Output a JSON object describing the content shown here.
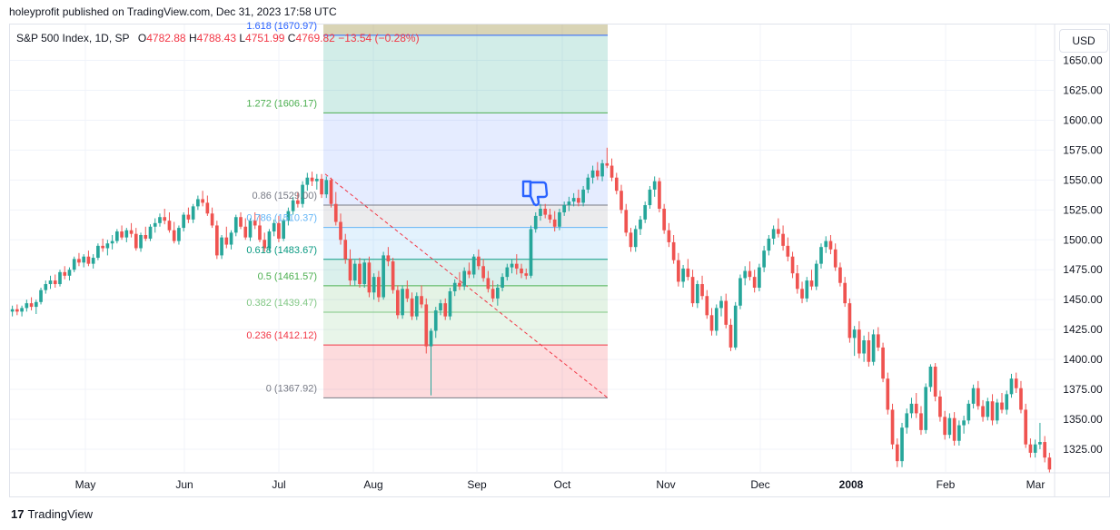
{
  "header": {
    "published": "holeyprofit published on TradingView.com, Dec 31, 2023 17:58 UTC"
  },
  "legend": {
    "symbol": "S&P 500 Index, 1D, SP",
    "o_label": "O",
    "o_value": "4782.88",
    "h_label": "H",
    "h_value": "4788.43",
    "l_label": "L",
    "l_value": "4751.99",
    "c_label": "C",
    "c_value": "4769.82",
    "change": "−13.54 (−0.28%)"
  },
  "currency": "USD",
  "footer": {
    "logo": "17",
    "brand": "TradingView"
  },
  "colors": {
    "up": "#26a69a",
    "down": "#ef5350",
    "grid": "#f0f3fa",
    "thumb": "#2962ff"
  },
  "annotation_icon": "thumbs-down-icon",
  "chart_data": {
    "type": "candlestick",
    "x_tick_labels": [
      "May",
      "Jun",
      "Jul",
      "Aug",
      "Sep",
      "Oct",
      "Nov",
      "Dec",
      "2008",
      "Feb",
      "Mar"
    ],
    "y_tick_labels": [
      "1650.00",
      "1625.00",
      "1600.00",
      "1575.00",
      "1550.00",
      "1525.00",
      "1500.00",
      "1475.00",
      "1450.00",
      "1425.00",
      "1400.00",
      "1375.00",
      "1350.00",
      "1325.00"
    ],
    "ylim": [
      1306,
      1680
    ],
    "grid": true,
    "fibonacci": [
      {
        "ratio": "1.618",
        "price": 1670.97,
        "label": "1.618 (1670.97)",
        "color": "#2962ff"
      },
      {
        "ratio": "1.272",
        "price": 1606.17,
        "label": "1.272 (1606.17)",
        "color": "#4caf50"
      },
      {
        "ratio": "0.86",
        "price": 1529.0,
        "label": "0.86 (1529.00)",
        "color": "#787b86"
      },
      {
        "ratio": "0.786",
        "price": 1510.37,
        "label": "0.786 (1510.37)",
        "color": "#64b5f6"
      },
      {
        "ratio": "0.618",
        "price": 1483.67,
        "label": "0.618 (1483.67)",
        "color": "#089981"
      },
      {
        "ratio": "0.5",
        "price": 1461.57,
        "label": "0.5 (1461.57)",
        "color": "#4caf50"
      },
      {
        "ratio": "0.382",
        "price": 1439.47,
        "label": "0.382 (1439.47)",
        "color": "#81c784"
      },
      {
        "ratio": "0.236",
        "price": 1412.12,
        "label": "0.236 (1412.12)",
        "color": "#f23645"
      },
      {
        "ratio": "0",
        "price": 1367.92,
        "label": "0 (1367.92)",
        "color": "#787b86"
      }
    ],
    "fib_trend_line": {
      "from_price": 1555.0,
      "to_price": 1367.92
    },
    "candles": [
      [
        1440,
        1445,
        1436,
        1442
      ],
      [
        1442,
        1446,
        1437,
        1440
      ],
      [
        1440,
        1445,
        1436,
        1443
      ],
      [
        1443,
        1450,
        1440,
        1447
      ],
      [
        1447,
        1452,
        1441,
        1444
      ],
      [
        1444,
        1450,
        1438,
        1448
      ],
      [
        1448,
        1460,
        1446,
        1458
      ],
      [
        1458,
        1466,
        1455,
        1463
      ],
      [
        1463,
        1470,
        1459,
        1466
      ],
      [
        1466,
        1471,
        1460,
        1463
      ],
      [
        1463,
        1475,
        1461,
        1473
      ],
      [
        1473,
        1478,
        1467,
        1470
      ],
      [
        1470,
        1477,
        1466,
        1475
      ],
      [
        1475,
        1486,
        1473,
        1484
      ],
      [
        1484,
        1489,
        1478,
        1481
      ],
      [
        1481,
        1488,
        1477,
        1486
      ],
      [
        1486,
        1491,
        1478,
        1480
      ],
      [
        1480,
        1488,
        1476,
        1485
      ],
      [
        1485,
        1497,
        1483,
        1495
      ],
      [
        1495,
        1501,
        1490,
        1493
      ],
      [
        1493,
        1500,
        1487,
        1497
      ],
      [
        1497,
        1504,
        1492,
        1499
      ],
      [
        1499,
        1509,
        1497,
        1507
      ],
      [
        1507,
        1512,
        1500,
        1502
      ],
      [
        1502,
        1510,
        1498,
        1508
      ],
      [
        1508,
        1514,
        1502,
        1505
      ],
      [
        1505,
        1510,
        1491,
        1493
      ],
      [
        1493,
        1506,
        1490,
        1504
      ],
      [
        1504,
        1511,
        1499,
        1501
      ],
      [
        1501,
        1513,
        1499,
        1511
      ],
      [
        1511,
        1518,
        1506,
        1514
      ],
      [
        1514,
        1522,
        1511,
        1519
      ],
      [
        1519,
        1526,
        1513,
        1516
      ],
      [
        1516,
        1523,
        1506,
        1508
      ],
      [
        1508,
        1515,
        1497,
        1499
      ],
      [
        1499,
        1512,
        1496,
        1510
      ],
      [
        1510,
        1523,
        1507,
        1521
      ],
      [
        1521,
        1527,
        1514,
        1517
      ],
      [
        1517,
        1530,
        1514,
        1528
      ],
      [
        1528,
        1537,
        1525,
        1534
      ],
      [
        1534,
        1541,
        1528,
        1531
      ],
      [
        1531,
        1537,
        1520,
        1522
      ],
      [
        1522,
        1527,
        1510,
        1512
      ],
      [
        1512,
        1516,
        1484,
        1487
      ],
      [
        1487,
        1504,
        1484,
        1502
      ],
      [
        1502,
        1511,
        1493,
        1496
      ],
      [
        1496,
        1508,
        1492,
        1506
      ],
      [
        1506,
        1521,
        1503,
        1519
      ],
      [
        1519,
        1523,
        1509,
        1511
      ],
      [
        1511,
        1518,
        1500,
        1502
      ],
      [
        1502,
        1518,
        1499,
        1516
      ],
      [
        1516,
        1523,
        1509,
        1512
      ],
      [
        1512,
        1521,
        1498,
        1500
      ],
      [
        1500,
        1506,
        1490,
        1493
      ],
      [
        1493,
        1509,
        1490,
        1507
      ],
      [
        1507,
        1517,
        1503,
        1514
      ],
      [
        1514,
        1520,
        1498,
        1501
      ],
      [
        1501,
        1518,
        1499,
        1516
      ],
      [
        1516,
        1527,
        1512,
        1524
      ],
      [
        1524,
        1536,
        1521,
        1533
      ],
      [
        1533,
        1540,
        1527,
        1530
      ],
      [
        1530,
        1549,
        1527,
        1546
      ],
      [
        1546,
        1556,
        1541,
        1552
      ],
      [
        1552,
        1557,
        1545,
        1549
      ],
      [
        1549,
        1555,
        1542,
        1551
      ],
      [
        1551,
        1555,
        1535,
        1538
      ],
      [
        1538,
        1553,
        1535,
        1550
      ],
      [
        1550,
        1552,
        1527,
        1530
      ],
      [
        1530,
        1540,
        1512,
        1515
      ],
      [
        1515,
        1522,
        1496,
        1500
      ],
      [
        1500,
        1505,
        1480,
        1484
      ],
      [
        1484,
        1492,
        1462,
        1466
      ],
      [
        1466,
        1483,
        1462,
        1480
      ],
      [
        1480,
        1485,
        1460,
        1463
      ],
      [
        1463,
        1484,
        1460,
        1481
      ],
      [
        1481,
        1486,
        1452,
        1456
      ],
      [
        1456,
        1472,
        1450,
        1469
      ],
      [
        1469,
        1474,
        1448,
        1452
      ],
      [
        1452,
        1490,
        1450,
        1487
      ],
      [
        1487,
        1494,
        1478,
        1482
      ],
      [
        1482,
        1485,
        1455,
        1458
      ],
      [
        1458,
        1462,
        1434,
        1437
      ],
      [
        1437,
        1462,
        1434,
        1459
      ],
      [
        1459,
        1466,
        1448,
        1451
      ],
      [
        1451,
        1456,
        1433,
        1436
      ],
      [
        1436,
        1456,
        1433,
        1453
      ],
      [
        1453,
        1462,
        1443,
        1446
      ],
      [
        1446,
        1451,
        1405,
        1411
      ],
      [
        1411,
        1426,
        1370,
        1424
      ],
      [
        1424,
        1444,
        1418,
        1441
      ],
      [
        1441,
        1450,
        1437,
        1447
      ],
      [
        1447,
        1451,
        1433,
        1436
      ],
      [
        1436,
        1460,
        1433,
        1457
      ],
      [
        1457,
        1467,
        1453,
        1464
      ],
      [
        1464,
        1473,
        1458,
        1461
      ],
      [
        1461,
        1477,
        1458,
        1474
      ],
      [
        1474,
        1481,
        1468,
        1471
      ],
      [
        1471,
        1488,
        1468,
        1486
      ],
      [
        1486,
        1492,
        1475,
        1478
      ],
      [
        1478,
        1484,
        1465,
        1468
      ],
      [
        1468,
        1474,
        1456,
        1459
      ],
      [
        1459,
        1466,
        1448,
        1451
      ],
      [
        1451,
        1463,
        1445,
        1460
      ],
      [
        1460,
        1472,
        1457,
        1469
      ],
      [
        1469,
        1480,
        1466,
        1477
      ],
      [
        1477,
        1484,
        1472,
        1480
      ],
      [
        1480,
        1488,
        1471,
        1476
      ],
      [
        1476,
        1480,
        1468,
        1472
      ],
      [
        1472,
        1476,
        1467,
        1470
      ],
      [
        1470,
        1512,
        1468,
        1509
      ],
      [
        1509,
        1523,
        1506,
        1520
      ],
      [
        1520,
        1530,
        1516,
        1526
      ],
      [
        1526,
        1530,
        1518,
        1521
      ],
      [
        1521,
        1526,
        1514,
        1517
      ],
      [
        1517,
        1524,
        1507,
        1511
      ],
      [
        1511,
        1526,
        1508,
        1523
      ],
      [
        1523,
        1532,
        1520,
        1529
      ],
      [
        1529,
        1536,
        1524,
        1532
      ],
      [
        1532,
        1539,
        1528,
        1535
      ],
      [
        1535,
        1542,
        1528,
        1531
      ],
      [
        1531,
        1545,
        1528,
        1542
      ],
      [
        1542,
        1555,
        1539,
        1552
      ],
      [
        1552,
        1562,
        1547,
        1558
      ],
      [
        1558,
        1565,
        1550,
        1553
      ],
      [
        1553,
        1567,
        1549,
        1564
      ],
      [
        1564,
        1577,
        1560,
        1562
      ],
      [
        1562,
        1568,
        1549,
        1552
      ],
      [
        1552,
        1556,
        1538,
        1541
      ],
      [
        1541,
        1546,
        1522,
        1525
      ],
      [
        1525,
        1530,
        1503,
        1506
      ],
      [
        1506,
        1510,
        1490,
        1494
      ],
      [
        1494,
        1512,
        1490,
        1509
      ],
      [
        1509,
        1520,
        1504,
        1517
      ],
      [
        1517,
        1532,
        1514,
        1529
      ],
      [
        1529,
        1545,
        1526,
        1542
      ],
      [
        1542,
        1553,
        1536,
        1549
      ],
      [
        1549,
        1552,
        1523,
        1526
      ],
      [
        1526,
        1530,
        1505,
        1508
      ],
      [
        1508,
        1514,
        1494,
        1498
      ],
      [
        1498,
        1504,
        1480,
        1483
      ],
      [
        1483,
        1489,
        1461,
        1465
      ],
      [
        1465,
        1479,
        1460,
        1476
      ],
      [
        1476,
        1484,
        1466,
        1469
      ],
      [
        1469,
        1475,
        1444,
        1447
      ],
      [
        1447,
        1466,
        1443,
        1463
      ],
      [
        1463,
        1470,
        1450,
        1453
      ],
      [
        1453,
        1458,
        1434,
        1437
      ],
      [
        1437,
        1443,
        1420,
        1424
      ],
      [
        1424,
        1446,
        1420,
        1443
      ],
      [
        1443,
        1453,
        1436,
        1449
      ],
      [
        1449,
        1455,
        1426,
        1429
      ],
      [
        1429,
        1434,
        1407,
        1410
      ],
      [
        1410,
        1448,
        1408,
        1445
      ],
      [
        1445,
        1471,
        1442,
        1468
      ],
      [
        1468,
        1478,
        1462,
        1474
      ],
      [
        1474,
        1482,
        1466,
        1469
      ],
      [
        1469,
        1475,
        1456,
        1460
      ],
      [
        1460,
        1480,
        1457,
        1477
      ],
      [
        1477,
        1495,
        1473,
        1491
      ],
      [
        1491,
        1504,
        1487,
        1501
      ],
      [
        1501,
        1512,
        1496,
        1509
      ],
      [
        1509,
        1518,
        1502,
        1505
      ],
      [
        1505,
        1512,
        1491,
        1495
      ],
      [
        1495,
        1502,
        1482,
        1486
      ],
      [
        1486,
        1490,
        1468,
        1472
      ],
      [
        1472,
        1479,
        1455,
        1459
      ],
      [
        1459,
        1465,
        1447,
        1451
      ],
      [
        1451,
        1469,
        1448,
        1466
      ],
      [
        1466,
        1475,
        1458,
        1461
      ],
      [
        1461,
        1483,
        1458,
        1480
      ],
      [
        1480,
        1497,
        1476,
        1494
      ],
      [
        1494,
        1503,
        1489,
        1499
      ],
      [
        1499,
        1504,
        1488,
        1492
      ],
      [
        1492,
        1497,
        1474,
        1477
      ],
      [
        1477,
        1481,
        1461,
        1464
      ],
      [
        1464,
        1469,
        1444,
        1447
      ],
      [
        1447,
        1451,
        1414,
        1418
      ],
      [
        1418,
        1428,
        1403,
        1425
      ],
      [
        1425,
        1432,
        1401,
        1405
      ],
      [
        1405,
        1420,
        1398,
        1416
      ],
      [
        1416,
        1423,
        1394,
        1398
      ],
      [
        1398,
        1425,
        1395,
        1421
      ],
      [
        1421,
        1427,
        1407,
        1410
      ],
      [
        1410,
        1414,
        1381,
        1384
      ],
      [
        1384,
        1389,
        1354,
        1358
      ],
      [
        1358,
        1363,
        1325,
        1329
      ],
      [
        1329,
        1334,
        1310,
        1315
      ],
      [
        1315,
        1347,
        1310,
        1343
      ],
      [
        1343,
        1359,
        1338,
        1355
      ],
      [
        1355,
        1368,
        1351,
        1363
      ],
      [
        1363,
        1372,
        1351,
        1355
      ],
      [
        1355,
        1361,
        1337,
        1341
      ],
      [
        1341,
        1380,
        1338,
        1377
      ],
      [
        1377,
        1396,
        1373,
        1394
      ],
      [
        1394,
        1397,
        1365,
        1369
      ],
      [
        1369,
        1374,
        1348,
        1352
      ],
      [
        1352,
        1357,
        1333,
        1337
      ],
      [
        1337,
        1355,
        1334,
        1351
      ],
      [
        1351,
        1356,
        1328,
        1332
      ],
      [
        1332,
        1349,
        1328,
        1345
      ],
      [
        1345,
        1353,
        1338,
        1349
      ],
      [
        1349,
        1366,
        1346,
        1363
      ],
      [
        1363,
        1379,
        1359,
        1376
      ],
      [
        1376,
        1382,
        1358,
        1361
      ],
      [
        1361,
        1366,
        1348,
        1352
      ],
      [
        1352,
        1368,
        1349,
        1365
      ],
      [
        1365,
        1371,
        1345,
        1349
      ],
      [
        1349,
        1367,
        1346,
        1364
      ],
      [
        1364,
        1372,
        1355,
        1358
      ],
      [
        1358,
        1374,
        1354,
        1371
      ],
      [
        1371,
        1388,
        1368,
        1384
      ],
      [
        1384,
        1389,
        1372,
        1376
      ],
      [
        1376,
        1382,
        1355,
        1358
      ],
      [
        1358,
        1363,
        1326,
        1329
      ],
      [
        1329,
        1334,
        1318,
        1322
      ],
      [
        1322,
        1333,
        1318,
        1329
      ],
      [
        1329,
        1347,
        1325,
        1331
      ],
      [
        1331,
        1336,
        1314,
        1318
      ],
      [
        1318,
        1322,
        1305,
        1308
      ]
    ]
  }
}
